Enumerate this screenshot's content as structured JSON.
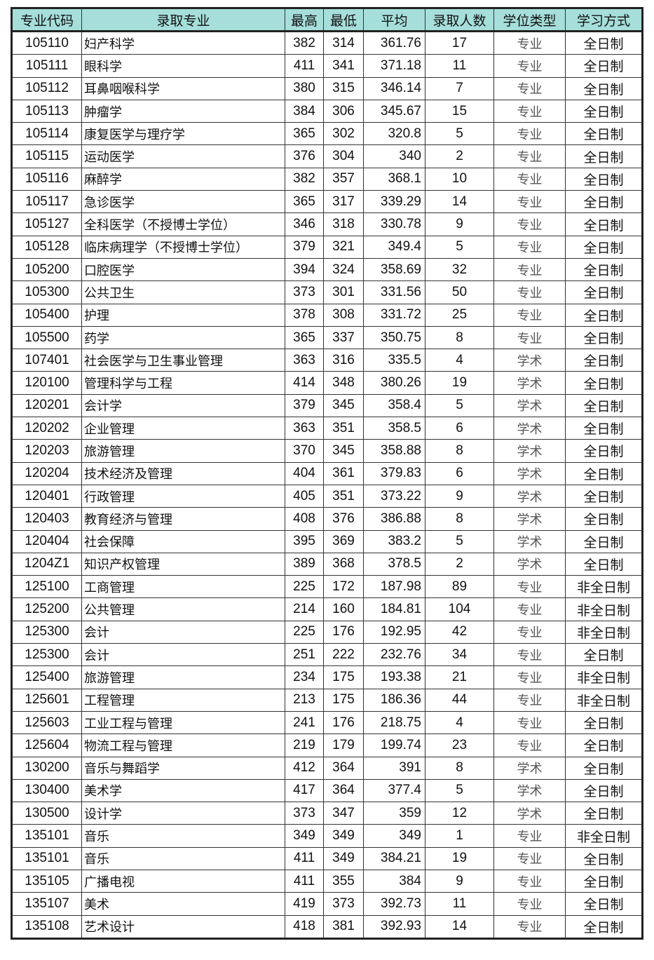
{
  "headers": [
    "专业代码",
    "录取专业",
    "最高",
    "最低",
    "平均",
    "录取人数",
    "学位类型",
    "学习方式"
  ],
  "rows": [
    [
      "105110",
      "妇产科学",
      "382",
      "314",
      "361.76",
      "17",
      "专业",
      "全日制"
    ],
    [
      "105111",
      "眼科学",
      "411",
      "341",
      "371.18",
      "11",
      "专业",
      "全日制"
    ],
    [
      "105112",
      "耳鼻咽喉科学",
      "380",
      "315",
      "346.14",
      "7",
      "专业",
      "全日制"
    ],
    [
      "105113",
      "肿瘤学",
      "384",
      "306",
      "345.67",
      "15",
      "专业",
      "全日制"
    ],
    [
      "105114",
      "康复医学与理疗学",
      "365",
      "302",
      "320.8",
      "5",
      "专业",
      "全日制"
    ],
    [
      "105115",
      "运动医学",
      "376",
      "304",
      "340",
      "2",
      "专业",
      "全日制"
    ],
    [
      "105116",
      "麻醉学",
      "382",
      "357",
      "368.1",
      "10",
      "专业",
      "全日制"
    ],
    [
      "105117",
      "急诊医学",
      "365",
      "317",
      "339.29",
      "14",
      "专业",
      "全日制"
    ],
    [
      "105127",
      "全科医学（不授博士学位）",
      "346",
      "318",
      "330.78",
      "9",
      "专业",
      "全日制"
    ],
    [
      "105128",
      "临床病理学（不授博士学位）",
      "379",
      "321",
      "349.4",
      "5",
      "专业",
      "全日制"
    ],
    [
      "105200",
      "口腔医学",
      "394",
      "324",
      "358.69",
      "32",
      "专业",
      "全日制"
    ],
    [
      "105300",
      "公共卫生",
      "373",
      "301",
      "331.56",
      "50",
      "专业",
      "全日制"
    ],
    [
      "105400",
      "护理",
      "378",
      "308",
      "331.72",
      "25",
      "专业",
      "全日制"
    ],
    [
      "105500",
      "药学",
      "365",
      "337",
      "350.75",
      "8",
      "专业",
      "全日制"
    ],
    [
      "107401",
      "社会医学与卫生事业管理",
      "363",
      "316",
      "335.5",
      "4",
      "学术",
      "全日制"
    ],
    [
      "120100",
      "管理科学与工程",
      "414",
      "348",
      "380.26",
      "19",
      "学术",
      "全日制"
    ],
    [
      "120201",
      "会计学",
      "379",
      "345",
      "358.4",
      "5",
      "学术",
      "全日制"
    ],
    [
      "120202",
      "企业管理",
      "363",
      "351",
      "358.5",
      "6",
      "学术",
      "全日制"
    ],
    [
      "120203",
      "旅游管理",
      "370",
      "345",
      "358.88",
      "8",
      "学术",
      "全日制"
    ],
    [
      "120204",
      "技术经济及管理",
      "404",
      "361",
      "379.83",
      "6",
      "学术",
      "全日制"
    ],
    [
      "120401",
      "行政管理",
      "405",
      "351",
      "373.22",
      "9",
      "学术",
      "全日制"
    ],
    [
      "120403",
      "教育经济与管理",
      "408",
      "376",
      "386.88",
      "8",
      "学术",
      "全日制"
    ],
    [
      "120404",
      "社会保障",
      "395",
      "369",
      "383.2",
      "5",
      "学术",
      "全日制"
    ],
    [
      "1204Z1",
      "知识产权管理",
      "389",
      "368",
      "378.5",
      "2",
      "学术",
      "全日制"
    ],
    [
      "125100",
      "工商管理",
      "225",
      "172",
      "187.98",
      "89",
      "专业",
      "非全日制"
    ],
    [
      "125200",
      "公共管理",
      "214",
      "160",
      "184.81",
      "104",
      "专业",
      "非全日制"
    ],
    [
      "125300",
      "会计",
      "225",
      "176",
      "192.95",
      "42",
      "专业",
      "非全日制"
    ],
    [
      "125300",
      "会计",
      "251",
      "222",
      "232.76",
      "34",
      "专业",
      "全日制"
    ],
    [
      "125400",
      "旅游管理",
      "234",
      "175",
      "193.38",
      "21",
      "专业",
      "非全日制"
    ],
    [
      "125601",
      "工程管理",
      "213",
      "175",
      "186.36",
      "44",
      "专业",
      "非全日制"
    ],
    [
      "125603",
      "工业工程与管理",
      "241",
      "176",
      "218.75",
      "4",
      "专业",
      "全日制"
    ],
    [
      "125604",
      "物流工程与管理",
      "219",
      "179",
      "199.74",
      "23",
      "专业",
      "全日制"
    ],
    [
      "130200",
      "音乐与舞蹈学",
      "412",
      "364",
      "391",
      "8",
      "学术",
      "全日制"
    ],
    [
      "130400",
      "美术学",
      "417",
      "364",
      "377.4",
      "5",
      "学术",
      "全日制"
    ],
    [
      "130500",
      "设计学",
      "373",
      "347",
      "359",
      "12",
      "学术",
      "全日制"
    ],
    [
      "135101",
      "音乐",
      "349",
      "349",
      "349",
      "1",
      "专业",
      "非全日制"
    ],
    [
      "135101",
      "音乐",
      "411",
      "349",
      "384.21",
      "19",
      "专业",
      "全日制"
    ],
    [
      "135105",
      "广播电视",
      "411",
      "355",
      "384",
      "9",
      "专业",
      "全日制"
    ],
    [
      "135107",
      "美术",
      "419",
      "373",
      "392.73",
      "11",
      "专业",
      "全日制"
    ],
    [
      "135108",
      "艺术设计",
      "418",
      "381",
      "392.93",
      "14",
      "专业",
      "全日制"
    ]
  ]
}
